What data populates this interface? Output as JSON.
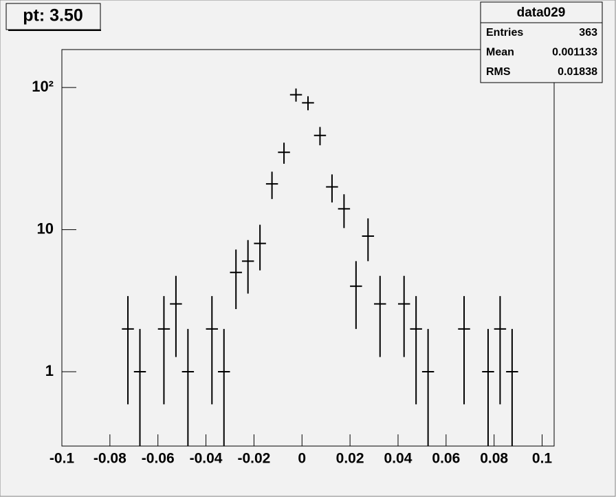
{
  "chart_data": {
    "type": "errorbar",
    "title": "pt: 3.50",
    "stats": {
      "name": "data029",
      "rows": [
        [
          "Entries",
          363
        ],
        [
          "Mean",
          0.001133
        ],
        [
          "RMS",
          0.01838
        ]
      ]
    },
    "x": [
      -0.0725,
      -0.0675,
      -0.0575,
      -0.0525,
      -0.0475,
      -0.0375,
      -0.0325,
      -0.0275,
      -0.0225,
      -0.0175,
      -0.0125,
      -0.0075,
      -0.0025,
      0.0025,
      0.0075,
      0.0125,
      0.0175,
      0.0225,
      0.0275,
      0.0325,
      0.0425,
      0.0475,
      0.0525,
      0.0675,
      0.0775,
      0.0825,
      0.0875
    ],
    "values": [
      2,
      1,
      2,
      3,
      1,
      2,
      1,
      5,
      6,
      8,
      21,
      35,
      89,
      78,
      46,
      20,
      14,
      4,
      9,
      3,
      3,
      2,
      1,
      2,
      1,
      2,
      1
    ],
    "errors": [
      1.41,
      1,
      1.41,
      1.73,
      1,
      1.41,
      1,
      2.24,
      2.45,
      2.83,
      4.58,
      5.92,
      9.43,
      8.83,
      6.78,
      4.47,
      3.74,
      2,
      3,
      1.73,
      1.73,
      1.41,
      1,
      1.41,
      1,
      1.41,
      1
    ],
    "bin_width": 0.005,
    "color": "#000000",
    "xlim": [
      -0.1,
      0.105
    ],
    "ylim": [
      0.3,
      185
    ],
    "log_y": true,
    "xticks": [
      -0.1,
      -0.08,
      -0.06,
      -0.04,
      -0.02,
      0,
      0.02,
      0.04,
      0.06,
      0.08,
      0.1
    ],
    "yticks": [
      1,
      10,
      {
        "value": 100,
        "label": "10²"
      }
    ]
  }
}
